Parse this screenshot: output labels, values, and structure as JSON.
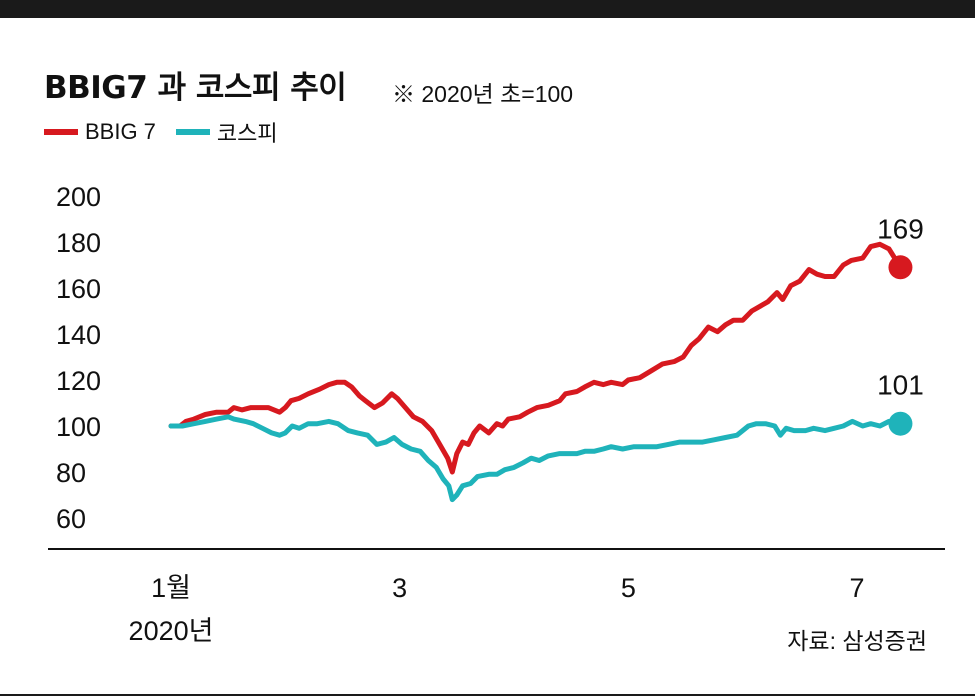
{
  "header": {
    "title": "BBIG7 과 코스피 추이",
    "note": "※ 2020년 초=100"
  },
  "legend": [
    {
      "label": "BBIG 7",
      "color": "#d7191f"
    },
    {
      "label": "코스피",
      "color": "#1fb3ba"
    }
  ],
  "source": "자료: 삼성증권",
  "chart_data": {
    "type": "line",
    "title": "BBIG7 과 코스피 추이",
    "subtitle": "※ 2020년 초=100",
    "ylim": [
      60,
      200
    ],
    "y_ticks": [
      "200",
      "180",
      "160",
      "140",
      "120",
      "100",
      "80",
      "60"
    ],
    "x_ticks": [
      {
        "label": "1월",
        "sublabel": "2020년",
        "at": 1.0
      },
      {
        "label": "3",
        "sublabel": "",
        "at": 3.0
      },
      {
        "label": "5",
        "sublabel": "",
        "at": 5.0
      },
      {
        "label": "7",
        "sublabel": "",
        "at": 7.0
      }
    ],
    "grid": false,
    "legend_position": "top-left",
    "end_labels": {
      "BBIG 7": "169",
      "코스피": "101"
    },
    "series": [
      {
        "name": "BBIG 7",
        "color": "#d7191f",
        "points": [
          [
            1.0,
            100
          ],
          [
            1.08,
            100
          ],
          [
            1.13,
            102
          ],
          [
            1.2,
            103
          ],
          [
            1.3,
            105
          ],
          [
            1.4,
            106
          ],
          [
            1.5,
            106
          ],
          [
            1.55,
            108
          ],
          [
            1.62,
            107
          ],
          [
            1.7,
            108
          ],
          [
            1.85,
            108
          ],
          [
            1.95,
            106
          ],
          [
            2.0,
            108
          ],
          [
            2.05,
            111
          ],
          [
            2.12,
            112
          ],
          [
            2.2,
            114
          ],
          [
            2.3,
            116
          ],
          [
            2.38,
            118
          ],
          [
            2.45,
            119
          ],
          [
            2.52,
            119
          ],
          [
            2.58,
            117
          ],
          [
            2.65,
            113
          ],
          [
            2.7,
            111
          ],
          [
            2.78,
            108
          ],
          [
            2.85,
            110
          ],
          [
            2.93,
            114
          ],
          [
            2.98,
            112
          ],
          [
            3.05,
            108
          ],
          [
            3.12,
            104
          ],
          [
            3.2,
            102
          ],
          [
            3.28,
            98
          ],
          [
            3.35,
            92
          ],
          [
            3.42,
            86
          ],
          [
            3.46,
            80
          ],
          [
            3.5,
            88
          ],
          [
            3.55,
            93
          ],
          [
            3.6,
            92
          ],
          [
            3.65,
            97
          ],
          [
            3.7,
            100
          ],
          [
            3.78,
            97
          ],
          [
            3.85,
            101
          ],
          [
            3.9,
            100
          ],
          [
            3.95,
            103
          ],
          [
            4.05,
            104
          ],
          [
            4.12,
            106
          ],
          [
            4.2,
            108
          ],
          [
            4.3,
            109
          ],
          [
            4.4,
            111
          ],
          [
            4.45,
            114
          ],
          [
            4.55,
            115
          ],
          [
            4.62,
            117
          ],
          [
            4.7,
            119
          ],
          [
            4.78,
            118
          ],
          [
            4.85,
            119
          ],
          [
            4.95,
            118
          ],
          [
            5.0,
            120
          ],
          [
            5.1,
            121
          ],
          [
            5.2,
            124
          ],
          [
            5.3,
            127
          ],
          [
            5.4,
            128
          ],
          [
            5.48,
            130
          ],
          [
            5.55,
            135
          ],
          [
            5.62,
            138
          ],
          [
            5.7,
            143
          ],
          [
            5.78,
            141
          ],
          [
            5.85,
            144
          ],
          [
            5.92,
            146
          ],
          [
            6.0,
            146
          ],
          [
            6.08,
            150
          ],
          [
            6.15,
            152
          ],
          [
            6.22,
            154
          ],
          [
            6.3,
            158
          ],
          [
            6.35,
            155
          ],
          [
            6.42,
            161
          ],
          [
            6.5,
            163
          ],
          [
            6.58,
            168
          ],
          [
            6.65,
            166
          ],
          [
            6.72,
            165
          ],
          [
            6.8,
            165
          ],
          [
            6.88,
            170
          ],
          [
            6.95,
            172
          ],
          [
            7.05,
            173
          ],
          [
            7.12,
            178
          ],
          [
            7.2,
            179
          ],
          [
            7.28,
            177
          ],
          [
            7.38,
            169
          ]
        ]
      },
      {
        "name": "코스피",
        "color": "#1fb3ba",
        "points": [
          [
            1.0,
            100
          ],
          [
            1.1,
            100
          ],
          [
            1.2,
            101
          ],
          [
            1.3,
            102
          ],
          [
            1.4,
            103
          ],
          [
            1.5,
            104
          ],
          [
            1.55,
            103
          ],
          [
            1.65,
            102
          ],
          [
            1.72,
            101
          ],
          [
            1.8,
            99
          ],
          [
            1.88,
            97
          ],
          [
            1.95,
            96
          ],
          [
            2.0,
            97
          ],
          [
            2.06,
            100
          ],
          [
            2.12,
            99
          ],
          [
            2.2,
            101
          ],
          [
            2.28,
            101
          ],
          [
            2.38,
            102
          ],
          [
            2.46,
            101
          ],
          [
            2.55,
            98
          ],
          [
            2.63,
            97
          ],
          [
            2.72,
            96
          ],
          [
            2.8,
            92
          ],
          [
            2.88,
            93
          ],
          [
            2.95,
            95
          ],
          [
            3.02,
            92
          ],
          [
            3.1,
            90
          ],
          [
            3.18,
            89
          ],
          [
            3.25,
            85
          ],
          [
            3.32,
            82
          ],
          [
            3.38,
            77
          ],
          [
            3.43,
            74
          ],
          [
            3.46,
            68
          ],
          [
            3.5,
            70
          ],
          [
            3.55,
            74
          ],
          [
            3.62,
            75
          ],
          [
            3.68,
            78
          ],
          [
            3.78,
            79
          ],
          [
            3.85,
            79
          ],
          [
            3.92,
            81
          ],
          [
            4.0,
            82
          ],
          [
            4.08,
            84
          ],
          [
            4.15,
            86
          ],
          [
            4.22,
            85
          ],
          [
            4.3,
            87
          ],
          [
            4.4,
            88
          ],
          [
            4.48,
            88
          ],
          [
            4.55,
            88
          ],
          [
            4.62,
            89
          ],
          [
            4.7,
            89
          ],
          [
            4.78,
            90
          ],
          [
            4.85,
            91
          ],
          [
            4.95,
            90
          ],
          [
            5.05,
            91
          ],
          [
            5.15,
            91
          ],
          [
            5.25,
            91
          ],
          [
            5.35,
            92
          ],
          [
            5.45,
            93
          ],
          [
            5.55,
            93
          ],
          [
            5.65,
            93
          ],
          [
            5.75,
            94
          ],
          [
            5.85,
            95
          ],
          [
            5.95,
            96
          ],
          [
            6.05,
            100
          ],
          [
            6.12,
            101
          ],
          [
            6.2,
            101
          ],
          [
            6.28,
            100
          ],
          [
            6.33,
            96
          ],
          [
            6.38,
            99
          ],
          [
            6.45,
            98
          ],
          [
            6.55,
            98
          ],
          [
            6.62,
            99
          ],
          [
            6.72,
            98
          ],
          [
            6.8,
            99
          ],
          [
            6.88,
            100
          ],
          [
            6.96,
            102
          ],
          [
            7.05,
            100
          ],
          [
            7.12,
            101
          ],
          [
            7.2,
            100
          ],
          [
            7.28,
            102
          ],
          [
            7.38,
            101
          ]
        ]
      }
    ]
  }
}
